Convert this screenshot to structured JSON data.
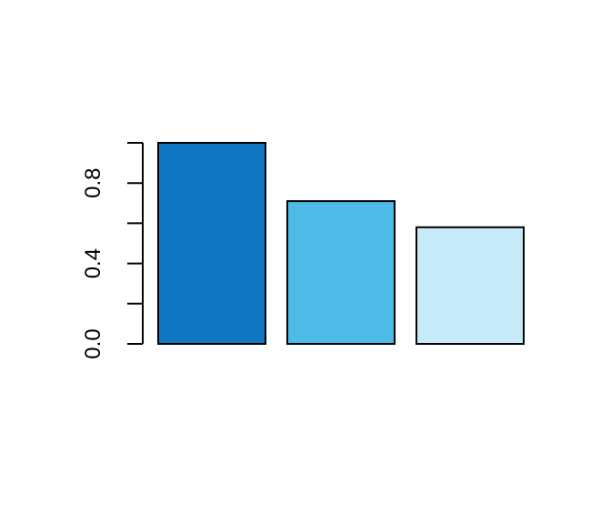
{
  "chart_data": {
    "type": "bar",
    "title": "",
    "xlabel": "",
    "ylabel": "",
    "categories": [
      "",
      "",
      ""
    ],
    "values": [
      1.0,
      0.71,
      0.58
    ],
    "colors": [
      "#1177C2",
      "#4DBAE7",
      "#C6EAF8"
    ],
    "border_color": "#000000",
    "ylim": [
      0,
      1.0
    ],
    "yticks": [
      0.0,
      0.2,
      0.4,
      0.6,
      0.8,
      1.0
    ],
    "ytick_labels": [
      "0.0",
      "",
      "0.4",
      "",
      "0.8",
      ""
    ],
    "grid": false,
    "legend": "none"
  }
}
